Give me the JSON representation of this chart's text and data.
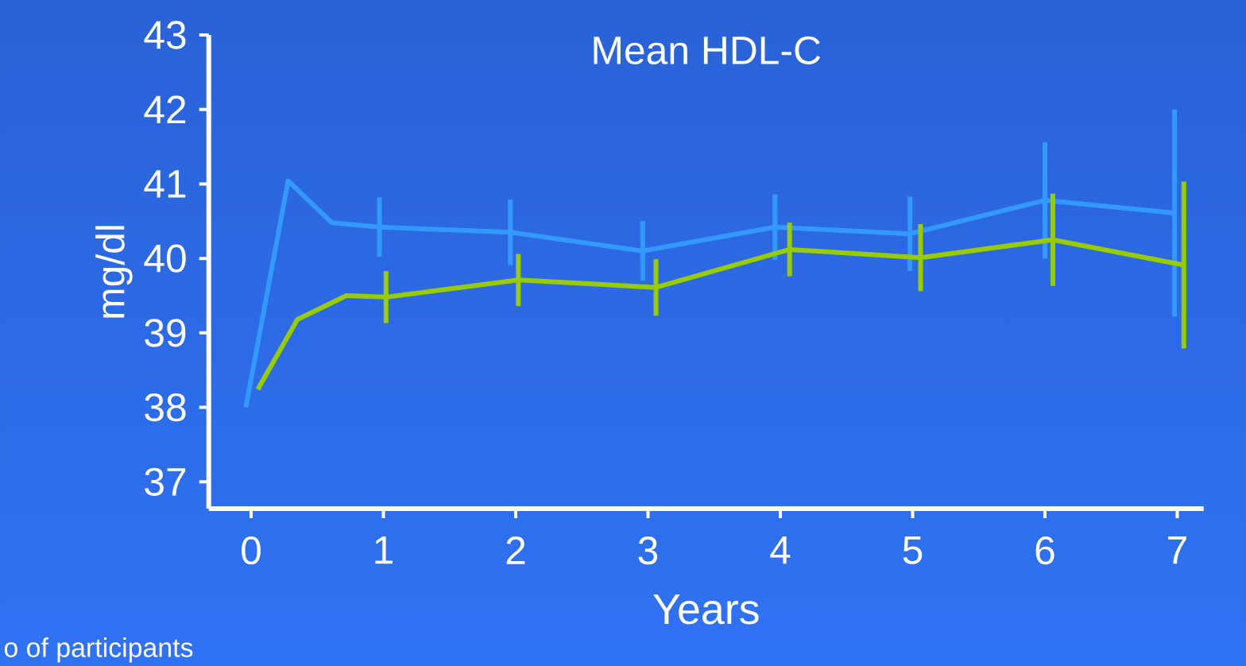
{
  "chart_data": {
    "type": "line",
    "title": "Mean HDL-C",
    "xlabel": "Years",
    "ylabel": "mg/dl",
    "annotations": [
      "o of participants"
    ],
    "xlim": [
      -0.32,
      7.2
    ],
    "ylim": [
      36.64,
      43
    ],
    "xticks": [
      0,
      1,
      2,
      3,
      4,
      5,
      6,
      7
    ],
    "yticks": [
      37,
      38,
      39,
      40,
      41,
      42,
      43
    ],
    "grid": false,
    "marker": "none",
    "line_style": "solid",
    "series": [
      {
        "color": "#3399ff",
        "x": [
          -0.04,
          0.28,
          0.61,
          0.97,
          1.96,
          2.96,
          3.96,
          4.98,
          6.0,
          6.98
        ],
        "values": [
          38.0,
          41.04,
          40.48,
          40.42,
          40.35,
          40.1,
          40.42,
          40.33,
          40.78,
          40.61
        ],
        "errors": [
          null,
          null,
          null,
          0.4,
          0.44,
          0.4,
          0.44,
          0.5,
          0.78,
          1.39
        ]
      },
      {
        "color": "#99cc00",
        "x": [
          0.05,
          0.35,
          0.72,
          1.02,
          2.02,
          3.06,
          4.07,
          5.06,
          6.06,
          7.05
        ],
        "values": [
          38.24,
          39.18,
          39.5,
          39.48,
          39.71,
          39.61,
          40.12,
          40.01,
          40.25,
          39.91
        ],
        "errors": [
          null,
          null,
          null,
          0.35,
          0.35,
          0.38,
          0.36,
          0.45,
          0.62,
          1.12
        ]
      }
    ]
  }
}
